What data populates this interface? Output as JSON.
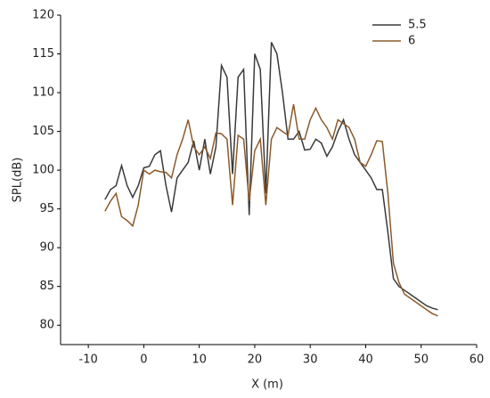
{
  "chart_data": {
    "type": "line",
    "x_label": "X (m)",
    "y_label": "SPL(dB)",
    "x": [
      -7,
      -6,
      -5,
      -4,
      -3,
      -2,
      -1,
      0,
      1,
      2,
      3,
      4,
      5,
      6,
      7,
      8,
      9,
      10,
      11,
      12,
      13,
      14,
      15,
      16,
      17,
      18,
      19,
      20,
      21,
      22,
      23,
      24,
      25,
      26,
      27,
      28,
      29,
      30,
      31,
      32,
      33,
      34,
      35,
      36,
      37,
      38,
      39,
      40,
      41,
      42,
      43,
      44,
      45,
      46,
      47,
      48,
      49,
      50,
      51,
      52,
      53
    ],
    "series": [
      {
        "name": "5.5",
        "color": "#3a3a3a",
        "values": [
          96.2,
          97.5,
          98,
          100.6,
          98,
          96.5,
          98,
          100.3,
          100.5,
          102,
          102.5,
          98,
          94.6,
          99,
          100,
          101,
          103.8,
          100,
          104,
          99.5,
          103,
          113.5,
          112,
          99.5,
          112,
          113,
          94.2,
          115,
          113,
          97,
          116.5,
          115,
          110,
          104,
          104,
          105,
          102.6,
          102.7,
          104,
          103.5,
          101.8,
          103,
          105,
          106.5,
          104,
          102,
          101,
          100,
          99,
          97.5,
          97.5,
          92,
          86,
          85,
          84.5,
          84,
          83.5,
          83,
          82.5,
          82.2,
          82
        ]
      },
      {
        "name": "6",
        "color": "#8b5a2b",
        "values": [
          94.7,
          96,
          97,
          94,
          93.5,
          92.8,
          95.5,
          100,
          99.5,
          100,
          99.8,
          99.7,
          99,
          102,
          104,
          106.5,
          103,
          102,
          103,
          101.5,
          104.8,
          104.7,
          104,
          95.5,
          104.5,
          104,
          96,
          102.5,
          104,
          95.5,
          104,
          105.5,
          105,
          104.5,
          108.5,
          104,
          104,
          106.5,
          108,
          106.5,
          105.5,
          104,
          106.5,
          106,
          105.5,
          104,
          101,
          100.5,
          102,
          103.8,
          103.7,
          97,
          88,
          85.5,
          84,
          83.5,
          83,
          82.5,
          82,
          81.5,
          81.2
        ]
      }
    ],
    "xlim": [
      -15,
      60
    ],
    "xticks": [
      -10,
      0,
      10,
      20,
      30,
      40,
      50,
      60
    ],
    "ylim": [
      77.5,
      120
    ],
    "yticks": [
      80,
      85,
      90,
      95,
      100,
      105,
      110,
      115,
      120
    ],
    "legend": "upper right"
  }
}
